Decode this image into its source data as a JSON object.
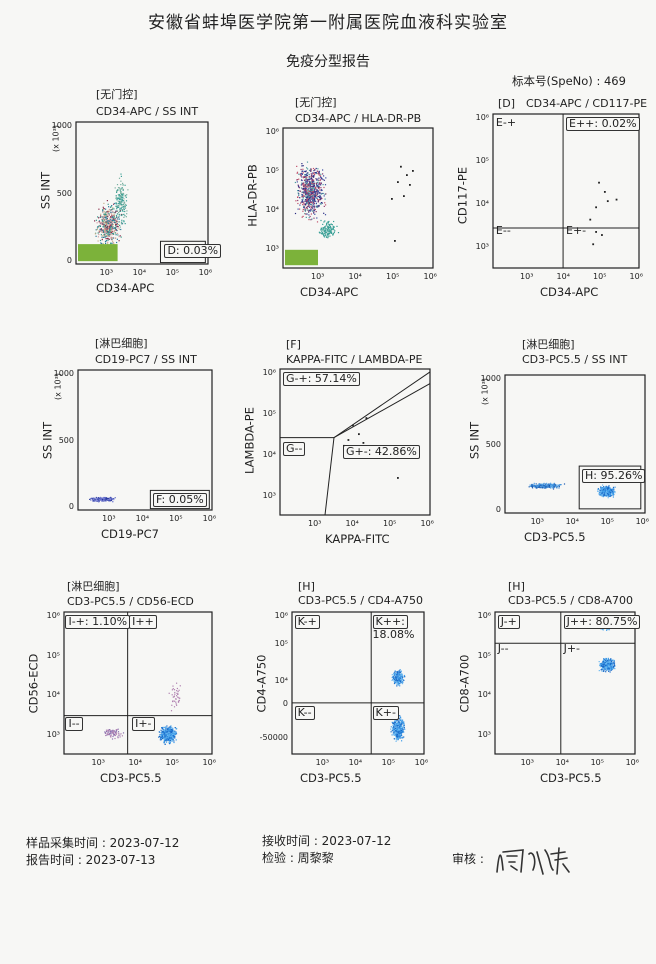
{
  "header": {
    "title": "安徽省蚌埠医学院第一附属医院血液科实验室",
    "subtitle": "免疫分型报告",
    "specimen_number": "标本号(SpeNo) : 469"
  },
  "plots": [
    {
      "gate": "[无门控]",
      "name": "CD34-APC / SS INT",
      "xlabel": "CD34-APC",
      "ylabel": "SS INT",
      "yexp": "(x 10³)",
      "xticks": [
        "10³",
        "10⁴",
        "10⁵",
        "10⁶"
      ],
      "yticks": [
        "1000",
        "500",
        "0"
      ],
      "regions": [
        {
          "label": "D: 0.03%"
        }
      ]
    },
    {
      "gate": "[无门控]",
      "name": "CD34-APC / HLA-DR-PB",
      "xlabel": "CD34-APC",
      "ylabel": "HLA-DR-PB",
      "xticks": [
        "10³",
        "10⁴",
        "10⁵",
        "10⁶"
      ],
      "yticks": [
        "10⁶",
        "10⁵",
        "10⁴",
        "10³"
      ],
      "regions": []
    },
    {
      "gate": "[D]",
      "name": "CD34-APC / CD117-PE",
      "xlabel": "CD34-APC",
      "ylabel": "CD117-PE",
      "xticks": [
        "10³",
        "10⁴",
        "10⁵",
        "10⁶"
      ],
      "yticks": [
        "10⁶",
        "10⁵",
        "10⁴",
        "10³"
      ],
      "regions": [
        {
          "label": "E-+"
        },
        {
          "label": "E++: 0.02%"
        },
        {
          "label": "E--"
        },
        {
          "label": "E+-"
        }
      ]
    },
    {
      "gate": "[淋巴细胞]",
      "name": "CD19-PC7 / SS INT",
      "xlabel": "CD19-PC7",
      "ylabel": "SS INT",
      "yexp": "(x 10³)",
      "xticks": [
        "10³",
        "10⁴",
        "10⁵",
        "10⁶"
      ],
      "yticks": [
        "1000",
        "500",
        "0"
      ],
      "regions": [
        {
          "label": "F: 0.05%"
        }
      ]
    },
    {
      "gate": "[F]",
      "name": "KAPPA-FITC / LAMBDA-PE",
      "xlabel": "KAPPA-FITC",
      "ylabel": "LAMBDA-PE",
      "xticks": [
        "10³",
        "10⁴",
        "10⁵",
        "10⁶"
      ],
      "yticks": [
        "10⁶",
        "10⁵",
        "10⁴",
        "10³"
      ],
      "regions": [
        {
          "label": "G-+: 57.14%"
        },
        {
          "label": "G--"
        },
        {
          "label": "G+-: 42.86%"
        }
      ]
    },
    {
      "gate": "[淋巴细胞]",
      "name": "CD3-PC5.5 / SS INT",
      "xlabel": "CD3-PC5.5",
      "ylabel": "SS INT",
      "yexp": "(x 10³)",
      "xticks": [
        "10³",
        "10⁴",
        "10⁵",
        "10⁶"
      ],
      "yticks": [
        "1000",
        "500",
        "0"
      ],
      "regions": [
        {
          "label": "H: 95.26%"
        }
      ]
    },
    {
      "gate": "[淋巴细胞]",
      "name": "CD3-PC5.5 / CD56-ECD",
      "xlabel": "CD3-PC5.5",
      "ylabel": "CD56-ECD",
      "xticks": [
        "10³",
        "10⁴",
        "10⁵",
        "10⁶"
      ],
      "yticks": [
        "10⁶",
        "10⁵",
        "10⁴",
        "10³"
      ],
      "regions": [
        {
          "label": "I-+: 1.10%"
        },
        {
          "label": "I++"
        },
        {
          "label": "I--"
        },
        {
          "label": "I+-"
        }
      ]
    },
    {
      "gate": "[H]",
      "name": "CD3-PC5.5 / CD4-A750",
      "xlabel": "CD3-PC5.5",
      "ylabel": "CD4-A750",
      "xticks": [
        "10³",
        "10⁴",
        "10⁵",
        "10⁶"
      ],
      "yticks": [
        "10⁶",
        "10⁵",
        "10⁴",
        "0",
        "-50000"
      ],
      "regions": [
        {
          "label": "K-+"
        },
        {
          "label": "K++:"
        },
        {
          "label": "18.08%"
        },
        {
          "label": "K--"
        },
        {
          "label": "K+-"
        }
      ]
    },
    {
      "gate": "[H]",
      "name": "CD3-PC5.5 / CD8-A700",
      "xlabel": "CD3-PC5.5",
      "ylabel": "CD8-A700",
      "xticks": [
        "10³",
        "10⁴",
        "10⁵",
        "10⁶"
      ],
      "yticks": [
        "10⁶",
        "10⁵",
        "10⁴",
        "10³"
      ],
      "regions": [
        {
          "label": "J-+"
        },
        {
          "label": "J++: 80.75%"
        },
        {
          "label": "J--"
        },
        {
          "label": "J+-"
        }
      ]
    }
  ],
  "footer": {
    "collect_time": "样品采集时间 :  2023-07-12",
    "report_time": "报告时间 :  2023-07-13",
    "receive_time": "接收时间 :  2023-07-12",
    "inspector": "检验 : 周黎黎",
    "reviewer_label": "审核 :"
  }
}
